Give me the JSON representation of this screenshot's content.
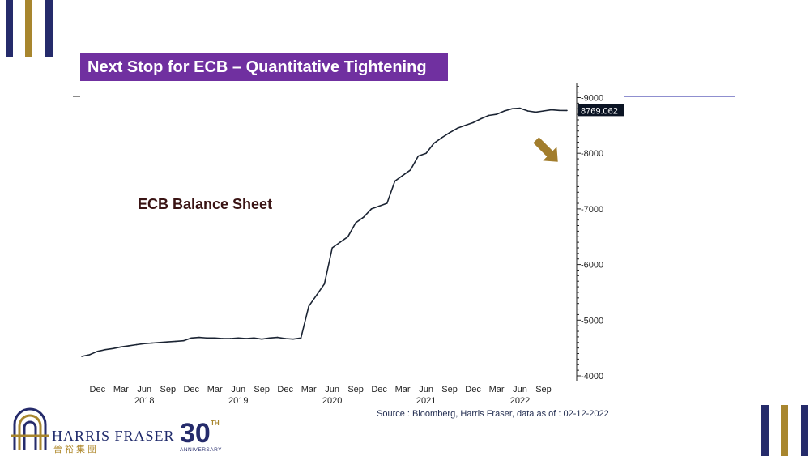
{
  "page": {
    "title": "Next Stop for ECB – Quantitative Tightening",
    "series_label": "ECB Balance Sheet",
    "source": "Source : Bloomberg, Harris Fraser, data as of : 02-12-2022",
    "logo": {
      "wordmark": "HARRIS FRASER",
      "chinese": "晉裕集團",
      "anniversary_number": "30",
      "anniversary_suffix": "TH",
      "anniversary_text": "ANNIVERSARY"
    }
  },
  "colors": {
    "navy": "#252b6b",
    "gold": "#a8862e",
    "purple": "#7030a0",
    "line": "#1b2433",
    "arrow": "#a27d2c"
  },
  "icons": {
    "down_arrow": "down-right-arrow-icon"
  },
  "chart_data": {
    "type": "line",
    "title": "",
    "series": [
      {
        "name": "",
        "x": [
          "2017-10",
          "2017-11",
          "2017-12",
          "2018-01",
          "2018-02",
          "2018-03",
          "2018-04",
          "2018-05",
          "2018-06",
          "2018-07",
          "2018-08",
          "2018-09",
          "2018-10",
          "2018-11",
          "2018-12",
          "2019-01",
          "2019-02",
          "2019-03",
          "2019-04",
          "2019-05",
          "2019-06",
          "2019-07",
          "2019-08",
          "2019-09",
          "2019-10",
          "2019-11",
          "2019-12",
          "2020-01",
          "2020-02",
          "2020-03",
          "2020-04",
          "2020-05",
          "2020-06",
          "2020-07",
          "2020-08",
          "2020-09",
          "2020-10",
          "2020-11",
          "2020-12",
          "2021-01",
          "2021-02",
          "2021-03",
          "2021-04",
          "2021-05",
          "2021-06",
          "2021-07",
          "2021-08",
          "2021-09",
          "2021-10",
          "2021-11",
          "2021-12",
          "2022-01",
          "2022-02",
          "2022-03",
          "2022-04",
          "2022-05",
          "2022-06",
          "2022-07",
          "2022-08",
          "2022-09",
          "2022-10",
          "2022-11",
          "2022-12"
        ],
        "values": [
          4350,
          4380,
          4440,
          4470,
          4490,
          4520,
          4540,
          4560,
          4580,
          4590,
          4600,
          4610,
          4620,
          4630,
          4680,
          4690,
          4680,
          4680,
          4670,
          4670,
          4680,
          4670,
          4680,
          4660,
          4680,
          4690,
          4670,
          4660,
          4680,
          5250,
          5450,
          5650,
          6300,
          6400,
          6500,
          6750,
          6850,
          7000,
          7050,
          7100,
          7500,
          7600,
          7700,
          7950,
          8000,
          8180,
          8280,
          8370,
          8450,
          8500,
          8550,
          8620,
          8680,
          8700,
          8760,
          8800,
          8810,
          8760,
          8740,
          8760,
          8780,
          8770,
          8769.062
        ]
      }
    ],
    "x_tick_labels": [
      "Dec",
      "Mar",
      "Jun",
      "Sep",
      "Dec",
      "Mar",
      "Jun",
      "Sep",
      "Dec",
      "Mar",
      "Jun",
      "Sep",
      "Dec",
      "Mar",
      "Jun",
      "Sep",
      "Dec",
      "Mar",
      "Jun",
      "Sep"
    ],
    "x_tick_dates": [
      "2017-12",
      "2018-03",
      "2018-06",
      "2018-09",
      "2018-12",
      "2019-03",
      "2019-06",
      "2019-09",
      "2019-12",
      "2020-03",
      "2020-06",
      "2020-09",
      "2020-12",
      "2021-03",
      "2021-06",
      "2021-09",
      "2021-12",
      "2022-03",
      "2022-06",
      "2022-09"
    ],
    "year_labels": [
      "2018",
      "2019",
      "2020",
      "2021",
      "2022"
    ],
    "year_dates": [
      "2018-06",
      "2019-06",
      "2020-06",
      "2021-06",
      "2022-06"
    ],
    "y_ticks": [
      4000,
      5000,
      6000,
      7000,
      8000,
      9000
    ],
    "ylim": [
      4000,
      9200
    ],
    "last_value_label": "8769.062",
    "y_axis_side": "right",
    "grid": false
  }
}
